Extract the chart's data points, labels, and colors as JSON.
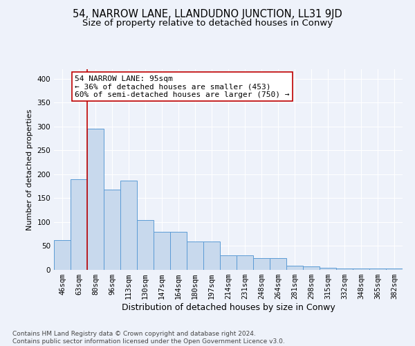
{
  "title": "54, NARROW LANE, LLANDUDNO JUNCTION, LL31 9JD",
  "subtitle": "Size of property relative to detached houses in Conwy",
  "xlabel": "Distribution of detached houses by size in Conwy",
  "ylabel": "Number of detached properties",
  "categories": [
    "46sqm",
    "63sqm",
    "80sqm",
    "96sqm",
    "113sqm",
    "130sqm",
    "147sqm",
    "164sqm",
    "180sqm",
    "197sqm",
    "214sqm",
    "231sqm",
    "248sqm",
    "264sqm",
    "281sqm",
    "298sqm",
    "315sqm",
    "332sqm",
    "348sqm",
    "365sqm",
    "382sqm"
  ],
  "values": [
    63,
    190,
    296,
    168,
    187,
    105,
    79,
    79,
    60,
    60,
    31,
    31,
    24,
    24,
    9,
    7,
    5,
    3,
    3,
    3,
    3
  ],
  "bar_color": "#c8d9ed",
  "bar_edge_color": "#5b9bd5",
  "vline_color": "#c00000",
  "vline_index": 1.5,
  "annotation_text": "54 NARROW LANE: 95sqm\n← 36% of detached houses are smaller (453)\n60% of semi-detached houses are larger (750) →",
  "annotation_box_color": "#ffffff",
  "annotation_box_edge_color": "#c00000",
  "ylim": [
    0,
    420
  ],
  "yticks": [
    0,
    50,
    100,
    150,
    200,
    250,
    300,
    350,
    400
  ],
  "background_color": "#eef2fa",
  "grid_color": "#ffffff",
  "footer": "Contains HM Land Registry data © Crown copyright and database right 2024.\nContains public sector information licensed under the Open Government Licence v3.0.",
  "title_fontsize": 10.5,
  "subtitle_fontsize": 9.5,
  "xlabel_fontsize": 9,
  "ylabel_fontsize": 8,
  "tick_fontsize": 7.5,
  "annotation_fontsize": 8,
  "footer_fontsize": 6.5
}
